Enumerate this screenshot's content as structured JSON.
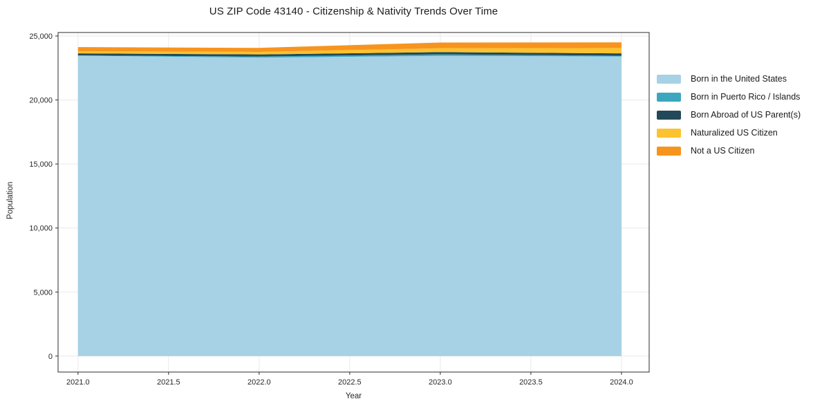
{
  "page": {
    "background": "#ffffff"
  },
  "header": {
    "title": "US ZIP Code 43140 - Citizenship & Nativity Trends Over Time"
  },
  "chart_data": {
    "type": "area",
    "stacked": true,
    "title": "US ZIP Code 43140 - Citizenship & Nativity Trends Over Time",
    "xlabel": "Year",
    "ylabel": "Population",
    "x": [
      2021,
      2022,
      2023,
      2024
    ],
    "series": [
      {
        "name": "Born in the United States",
        "color": "#a7d1e5",
        "values": [
          23460,
          23310,
          23450,
          23400
        ]
      },
      {
        "name": "Born in Puerto Rico / Islands",
        "color": "#3da6bf",
        "values": [
          20,
          90,
          110,
          60
        ]
      },
      {
        "name": "Born Abroad of US Parent(s)",
        "color": "#21495a",
        "values": [
          160,
          160,
          180,
          180
        ]
      },
      {
        "name": "Naturalized US Citizen",
        "color": "#fdc22f",
        "values": [
          170,
          200,
          300,
          420
        ]
      },
      {
        "name": "Not a US Citizen",
        "color": "#f7941e",
        "values": [
          320,
          310,
          450,
          440
        ]
      }
    ],
    "xlim": [
      2020.89,
      2024.153
    ],
    "ylim": [
      -1250,
      25270
    ],
    "xticks": {
      "values": [
        2021.0,
        2021.5,
        2022.0,
        2022.5,
        2023.0,
        2023.5,
        2024.0
      ],
      "labels": [
        "2021.0",
        "2021.5",
        "2022.0",
        "2022.5",
        "2023.0",
        "2023.5",
        "2024.0"
      ]
    },
    "yticks": {
      "values": [
        0,
        5000,
        10000,
        15000,
        20000,
        25000
      ],
      "labels": [
        "0",
        "5,000",
        "10,000",
        "15,000",
        "20,000",
        "25,000"
      ]
    },
    "grid": true,
    "grid_color": "#e9e9e9",
    "spine_color": "#2b2b2b",
    "legend_position": "right"
  }
}
